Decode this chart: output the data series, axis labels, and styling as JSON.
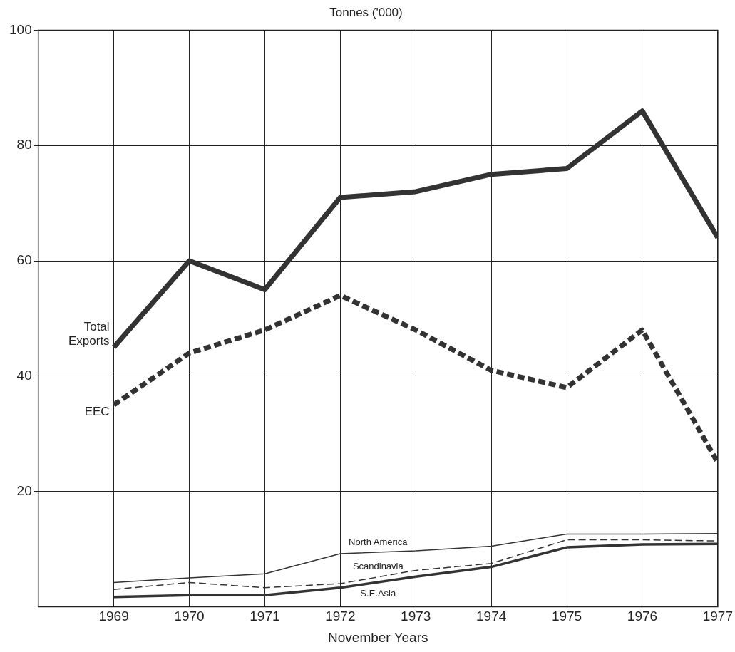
{
  "chart_data": {
    "type": "line",
    "ylabel": "Tonnes ('000)",
    "xlabel": "November Years",
    "x": [
      1969,
      1970,
      1971,
      1972,
      1973,
      1974,
      1975,
      1976,
      1977
    ],
    "xlim": [
      1968,
      1977
    ],
    "xticks": [
      1969,
      1970,
      1971,
      1972,
      1973,
      1974,
      1975,
      1976,
      1977
    ],
    "ylim": [
      0,
      100
    ],
    "yticks": [
      20,
      40,
      60,
      80,
      100
    ],
    "grid": true,
    "legend": false,
    "marker": "none",
    "series": [
      {
        "name": "Total Exports",
        "color": "#333333",
        "line_style": "solid",
        "values": [
          45,
          60,
          55,
          71,
          72,
          75,
          76,
          86,
          64
        ]
      },
      {
        "name": "EEC",
        "color": "#333333",
        "line_style": "dashed",
        "values": [
          35,
          44,
          48,
          54,
          48,
          41,
          38,
          48,
          25
        ]
      },
      {
        "name": "North America",
        "color": "#333333",
        "line_style": "solid",
        "values": [
          4.2,
          5,
          5.7,
          9.2,
          9.7,
          10.5,
          12.6,
          12.6,
          12.7
        ]
      },
      {
        "name": "Scandinavia",
        "color": "#333333",
        "line_style": "dashed",
        "values": [
          3,
          4.2,
          3.3,
          4,
          6.3,
          7.5,
          11.6,
          11.6,
          11.4
        ]
      },
      {
        "name": "S.E.Asia",
        "color": "#333333",
        "line_style": "solid",
        "values": [
          1.7,
          2,
          2,
          3.3,
          5.2,
          6.9,
          10.3,
          10.8,
          10.9
        ]
      }
    ]
  }
}
